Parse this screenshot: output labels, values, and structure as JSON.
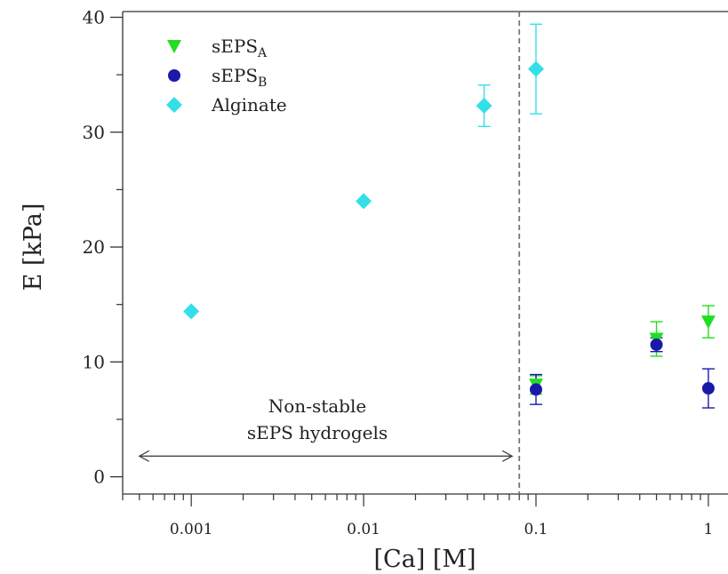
{
  "chart_data": {
    "type": "scatter",
    "xlabel": "[Ca] [M]",
    "ylabel": "E [kPa]",
    "xscale": "log",
    "xlim": [
      0.0004,
      1.3
    ],
    "ylim": [
      -1.5,
      40.5
    ],
    "x_ticks": [
      {
        "value": 0.001,
        "label": "0.001"
      },
      {
        "value": 0.01,
        "label": "0.01"
      },
      {
        "value": 0.1,
        "label": "0.1"
      },
      {
        "value": 1,
        "label": "1"
      }
    ],
    "y_ticks": [
      {
        "value": 0,
        "label": "0"
      },
      {
        "value": 10,
        "label": "10"
      },
      {
        "value": 20,
        "label": "20"
      },
      {
        "value": 30,
        "label": "30"
      },
      {
        "value": 40,
        "label": "40"
      }
    ],
    "legend_position": "top-left",
    "series": [
      {
        "name": "sEPS",
        "name_sub": "A",
        "marker": "triangle-down",
        "color": "#22dd22",
        "points": [
          {
            "x": 0.1,
            "y": 8.0,
            "err": 0.8
          },
          {
            "x": 0.5,
            "y": 12.0,
            "err": 1.5
          },
          {
            "x": 1,
            "y": 13.5,
            "err": 1.4
          }
        ]
      },
      {
        "name": "sEPS",
        "name_sub": "B",
        "marker": "circle",
        "color": "#1a1aa8",
        "points": [
          {
            "x": 0.1,
            "y": 7.6,
            "err": 1.3
          },
          {
            "x": 0.5,
            "y": 11.5,
            "err": 0.6
          },
          {
            "x": 1,
            "y": 7.7,
            "err": 1.7
          }
        ]
      },
      {
        "name": "Alginate",
        "name_sub": "",
        "marker": "diamond",
        "color": "#33e0e8",
        "points": [
          {
            "x": 0.001,
            "y": 14.4,
            "err": 0
          },
          {
            "x": 0.01,
            "y": 24.0,
            "err": 0
          },
          {
            "x": 0.05,
            "y": 32.3,
            "err": 1.8
          },
          {
            "x": 0.1,
            "y": 35.5,
            "err": 3.9
          }
        ]
      }
    ],
    "vline": {
      "x": 0.08,
      "style": "dashed"
    },
    "annotation": {
      "lines": [
        "Non-stable",
        "sEPS hydrogels"
      ],
      "arrow_from": 0.0005,
      "arrow_to": 0.08,
      "arrow_y": 1.8
    }
  }
}
